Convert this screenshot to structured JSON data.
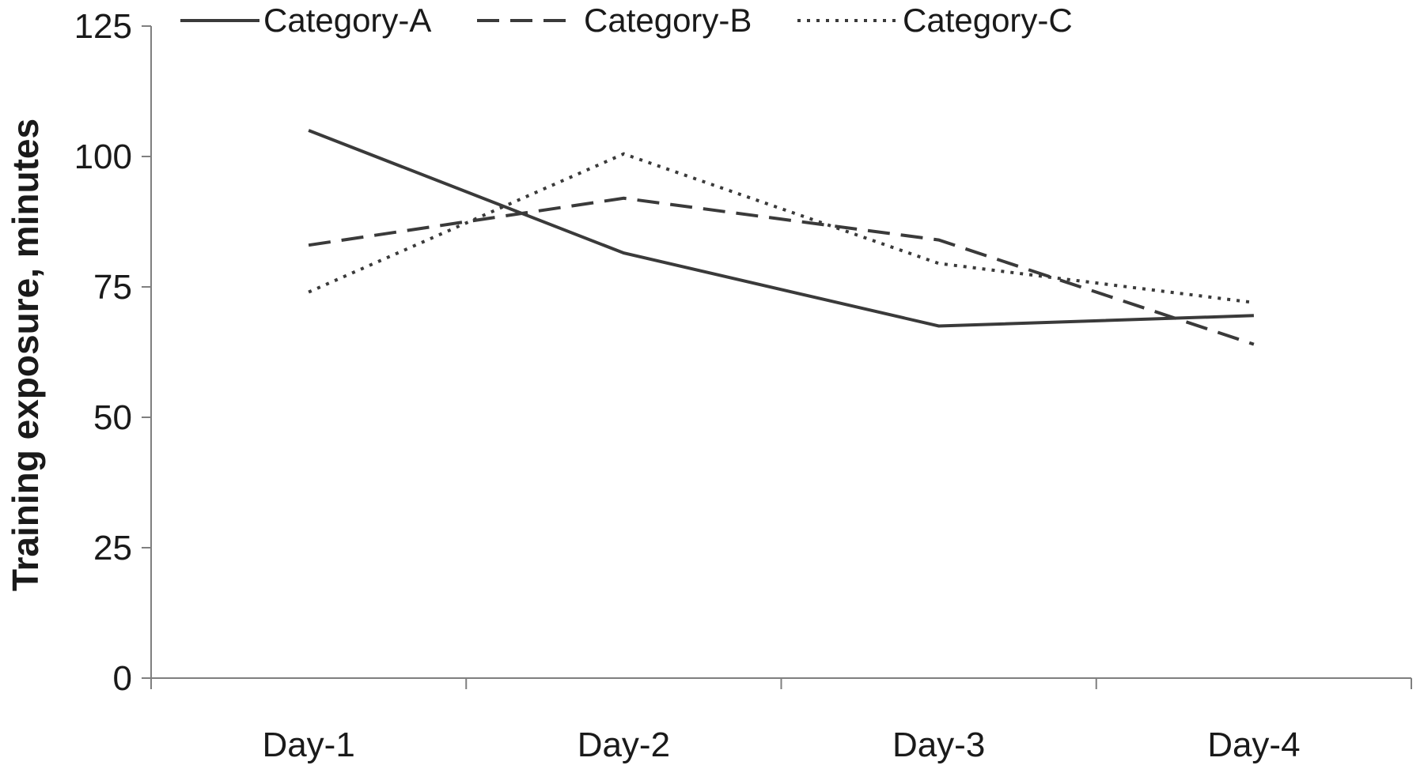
{
  "chart_data": {
    "type": "line",
    "title": "",
    "xlabel": "",
    "ylabel": "Training exposure, minutes",
    "categories": [
      "Day-1",
      "Day-2",
      "Day-3",
      "Day-4"
    ],
    "ylim": [
      0,
      125
    ],
    "yticks": [
      0,
      25,
      50,
      75,
      100,
      125
    ],
    "grid": false,
    "legend_position": "top",
    "series": [
      {
        "name": "Category-A",
        "style": "solid",
        "color": "#3a3a3a",
        "values": [
          105,
          81.5,
          67.5,
          69.5
        ]
      },
      {
        "name": "Category-B",
        "style": "dashed",
        "color": "#3a3a3a",
        "values": [
          83,
          92,
          84,
          64
        ]
      },
      {
        "name": "Category-C",
        "style": "dotted",
        "color": "#3a3a3a",
        "values": [
          74,
          100.5,
          79.5,
          72
        ]
      }
    ]
  }
}
